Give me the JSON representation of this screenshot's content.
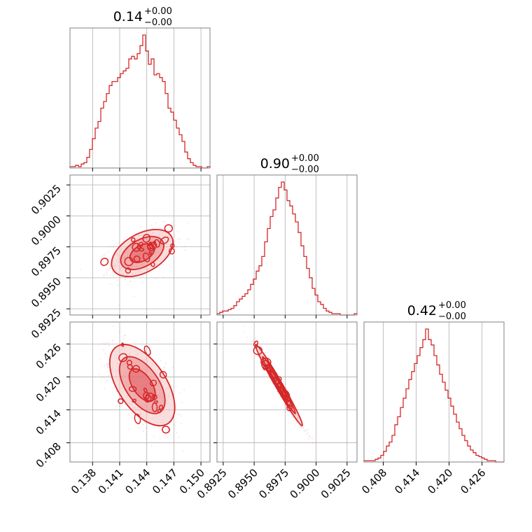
{
  "colors": {
    "accent": "#d62728",
    "fill_light": "#f4c2c2",
    "fill_mid": "#eb8a8c",
    "grid": "#b0b0b0",
    "frame": "#808080"
  },
  "chart_data": {
    "type": "corner",
    "parameters": [
      {
        "name": "",
        "title_value": "0.14",
        "title_plus": "+0.00",
        "title_minus": "−0.00",
        "range": [
          0.1355,
          0.151
        ],
        "ticks": [
          0.138,
          0.141,
          0.144,
          0.147,
          0.15
        ],
        "tick_labels": [
          "0.138",
          "0.141",
          "0.144",
          "0.147",
          "0.150"
        ]
      },
      {
        "name": "",
        "title_value": "0.90",
        "title_plus": "+0.00",
        "title_minus": "−0.00",
        "range": [
          0.892,
          0.9033
        ],
        "ticks": [
          0.8925,
          0.895,
          0.8975,
          0.9,
          0.9025
        ],
        "tick_labels": [
          "0.8925",
          "0.8950",
          "0.8975",
          "0.9000",
          "0.9025"
        ]
      },
      {
        "name": "",
        "title_value": "0.42",
        "title_plus": "+0.00",
        "title_minus": "−0.00",
        "range": [
          0.4045,
          0.43
        ],
        "ticks": [
          0.408,
          0.414,
          0.42,
          0.426
        ],
        "tick_labels": [
          "0.408",
          "0.414",
          "0.420",
          "0.426"
        ]
      }
    ],
    "histograms": [
      {
        "param": 0,
        "bin_edges": [
          0.1355,
          0.151
        ],
        "counts": [
          1,
          1,
          2,
          1,
          3,
          4,
          8,
          14,
          22,
          30,
          35,
          45,
          50,
          56,
          62,
          65,
          65,
          68,
          71,
          73,
          75,
          82,
          84,
          82,
          86,
          92,
          100,
          88,
          78,
          82,
          70,
          71,
          68,
          65,
          56,
          45,
          42,
          36,
          30,
          25,
          20,
          12,
          7,
          4,
          2,
          1,
          1,
          0,
          0,
          1
        ]
      },
      {
        "param": 1,
        "bin_edges": [
          0.892,
          0.9033
        ],
        "counts": [
          1,
          2,
          3,
          3,
          4,
          5,
          7,
          10,
          12,
          14,
          16,
          19,
          23,
          27,
          33,
          37,
          44,
          55,
          65,
          74,
          79,
          88,
          96,
          100,
          94,
          86,
          82,
          76,
          70,
          62,
          52,
          44,
          35,
          28,
          20,
          15,
          10,
          8,
          5,
          3,
          2,
          1,
          1,
          1,
          0,
          0,
          0,
          0,
          0,
          1
        ]
      },
      {
        "param": 2,
        "bin_edges": [
          0.4045,
          0.43
        ],
        "counts": [
          1,
          1,
          1,
          1,
          2,
          3,
          5,
          8,
          12,
          15,
          20,
          28,
          34,
          41,
          48,
          55,
          62,
          68,
          74,
          80,
          86,
          92,
          100,
          92,
          88,
          80,
          73,
          66,
          60,
          54,
          48,
          42,
          36,
          30,
          25,
          20,
          16,
          12,
          9,
          7,
          5,
          4,
          3,
          2,
          1,
          1,
          1,
          0,
          0,
          0
        ]
      }
    ],
    "joint": [
      {
        "x_param": 0,
        "y_param": 1,
        "mean": [
          0.1435,
          0.897
        ],
        "sd": [
          0.0017,
          0.00095
        ],
        "corr": 0.45
      },
      {
        "x_param": 0,
        "y_param": 2,
        "mean": [
          0.1435,
          0.4185
        ],
        "sd": [
          0.0018,
          0.0037
        ],
        "corr": -0.55
      },
      {
        "x_param": 1,
        "y_param": 2,
        "mean": [
          0.897,
          0.4185
        ],
        "sd": [
          0.00095,
          0.0037
        ],
        "corr": -0.985
      }
    ]
  }
}
